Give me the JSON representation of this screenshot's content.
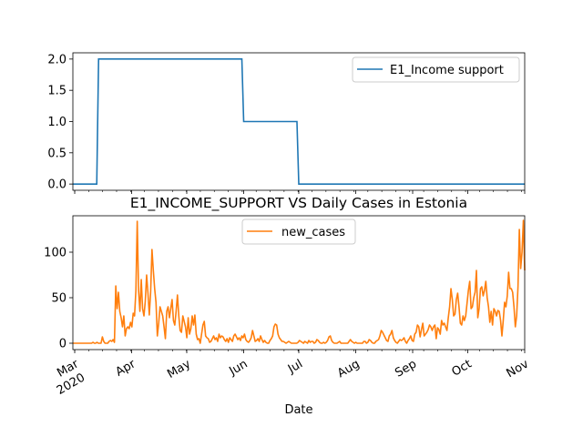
{
  "chart_data": [
    {
      "type": "line",
      "title": "",
      "xlabel": "",
      "ylabel": "",
      "ylim": [
        -0.1,
        2.1
      ],
      "yticks": [
        "0.0",
        "0.5",
        "1.0",
        "1.5",
        "2.0"
      ],
      "grid": false,
      "legend_position": "upper-right",
      "series": [
        {
          "name": "E1_Income support",
          "color": "#1f77b4",
          "step": true,
          "points": [
            [
              "2020-02-29",
              0
            ],
            [
              "2020-03-13",
              0
            ],
            [
              "2020-03-14",
              2
            ],
            [
              "2020-05-31",
              2
            ],
            [
              "2020-06-01",
              1
            ],
            [
              "2020-06-30",
              1
            ],
            [
              "2020-07-01",
              0
            ],
            [
              "2020-11-01",
              0
            ]
          ]
        }
      ]
    },
    {
      "type": "line",
      "title": "E1_INCOME_SUPPORT VS Daily Cases in Estonia",
      "xlabel": "Date",
      "ylabel": "",
      "ylim": [
        -7,
        140
      ],
      "yticks": [
        "0",
        "50",
        "100"
      ],
      "grid": false,
      "legend_position": "upper-center",
      "x_tick_labels": [
        {
          "date": "2020-03-01",
          "label": "Mar",
          "sub": "2020"
        },
        {
          "date": "2020-04-01",
          "label": "Apr",
          "sub": ""
        },
        {
          "date": "2020-05-01",
          "label": "May",
          "sub": ""
        },
        {
          "date": "2020-06-01",
          "label": "Jun",
          "sub": ""
        },
        {
          "date": "2020-07-01",
          "label": "Jul",
          "sub": ""
        },
        {
          "date": "2020-08-01",
          "label": "Aug",
          "sub": ""
        },
        {
          "date": "2020-09-01",
          "label": "Sep",
          "sub": ""
        },
        {
          "date": "2020-10-01",
          "label": "Oct",
          "sub": ""
        },
        {
          "date": "2020-11-01",
          "label": "Nov",
          "sub": ""
        }
      ],
      "series": [
        {
          "name": "new_cases",
          "color": "#ff7f0e",
          "x_start": "2020-02-29",
          "x_end": "2020-11-01",
          "values": [
            0,
            0,
            0,
            0,
            0,
            0,
            0,
            0,
            0,
            0,
            0,
            0,
            0,
            0,
            0,
            1,
            0,
            0,
            1,
            0,
            0,
            0,
            7,
            2,
            0,
            0,
            0,
            2,
            3,
            2,
            4,
            1,
            63,
            38,
            56,
            35,
            28,
            18,
            30,
            8,
            16,
            18,
            16,
            23,
            18,
            33,
            30,
            58,
            134,
            58,
            35,
            70,
            38,
            30,
            46,
            75,
            55,
            31,
            56,
            103,
            80,
            60,
            45,
            8,
            22,
            40,
            35,
            30,
            18,
            5,
            35,
            40,
            28,
            38,
            48,
            25,
            20,
            35,
            53,
            30,
            14,
            12,
            30,
            24,
            18,
            6,
            28,
            10,
            16,
            30,
            20,
            31,
            10,
            4,
            5,
            0,
            10,
            20,
            24,
            8,
            6,
            5,
            1,
            2,
            5,
            8,
            4,
            6,
            2,
            10,
            6,
            8,
            7,
            4,
            2,
            5,
            1,
            6,
            4,
            2,
            8,
            10,
            7,
            4,
            6,
            3,
            8,
            6,
            10,
            4,
            2,
            1,
            3,
            6,
            14,
            8,
            2,
            3,
            5,
            2,
            8,
            4,
            1,
            3,
            1,
            0,
            0,
            3,
            5,
            8,
            18,
            21,
            20,
            10,
            6,
            4,
            2,
            2,
            1,
            0,
            1,
            2,
            1,
            0,
            0,
            0,
            0,
            0,
            1,
            3,
            2,
            1,
            0,
            2,
            1,
            0,
            3,
            1,
            2,
            2,
            0,
            1,
            4,
            3,
            1,
            0,
            0,
            1,
            0,
            1,
            3,
            7,
            8,
            3,
            1,
            0,
            0,
            0,
            1,
            2,
            0,
            0,
            0,
            0,
            0,
            0,
            2,
            4,
            2,
            1,
            0,
            1,
            0,
            0,
            0,
            0,
            0,
            2,
            2,
            0,
            1,
            4,
            3,
            1,
            0,
            0,
            2,
            3,
            4,
            8,
            14,
            12,
            9,
            6,
            3,
            2,
            8,
            10,
            14,
            6,
            3,
            1,
            0,
            2,
            4,
            3,
            4,
            6,
            2,
            0,
            3,
            5,
            8,
            3,
            2,
            10,
            12,
            20,
            18,
            7,
            15,
            22,
            8,
            10,
            12,
            15,
            20,
            18,
            14,
            18,
            20,
            5,
            17,
            15,
            10,
            25,
            20,
            22,
            18,
            14,
            28,
            40,
            60,
            48,
            30,
            32,
            48,
            55,
            40,
            22,
            20,
            30,
            25,
            30,
            44,
            58,
            68,
            38,
            40,
            50,
            56,
            80,
            28,
            38,
            60,
            62,
            52,
            58,
            68,
            50,
            40,
            23,
            35,
            20,
            38,
            35,
            30,
            36,
            35,
            25,
            8,
            25,
            45,
            40,
            52,
            78,
            60,
            60,
            56,
            40,
            18,
            30,
            62,
            125,
            82,
            100,
            135,
            80
          ]
        }
      ]
    }
  ]
}
